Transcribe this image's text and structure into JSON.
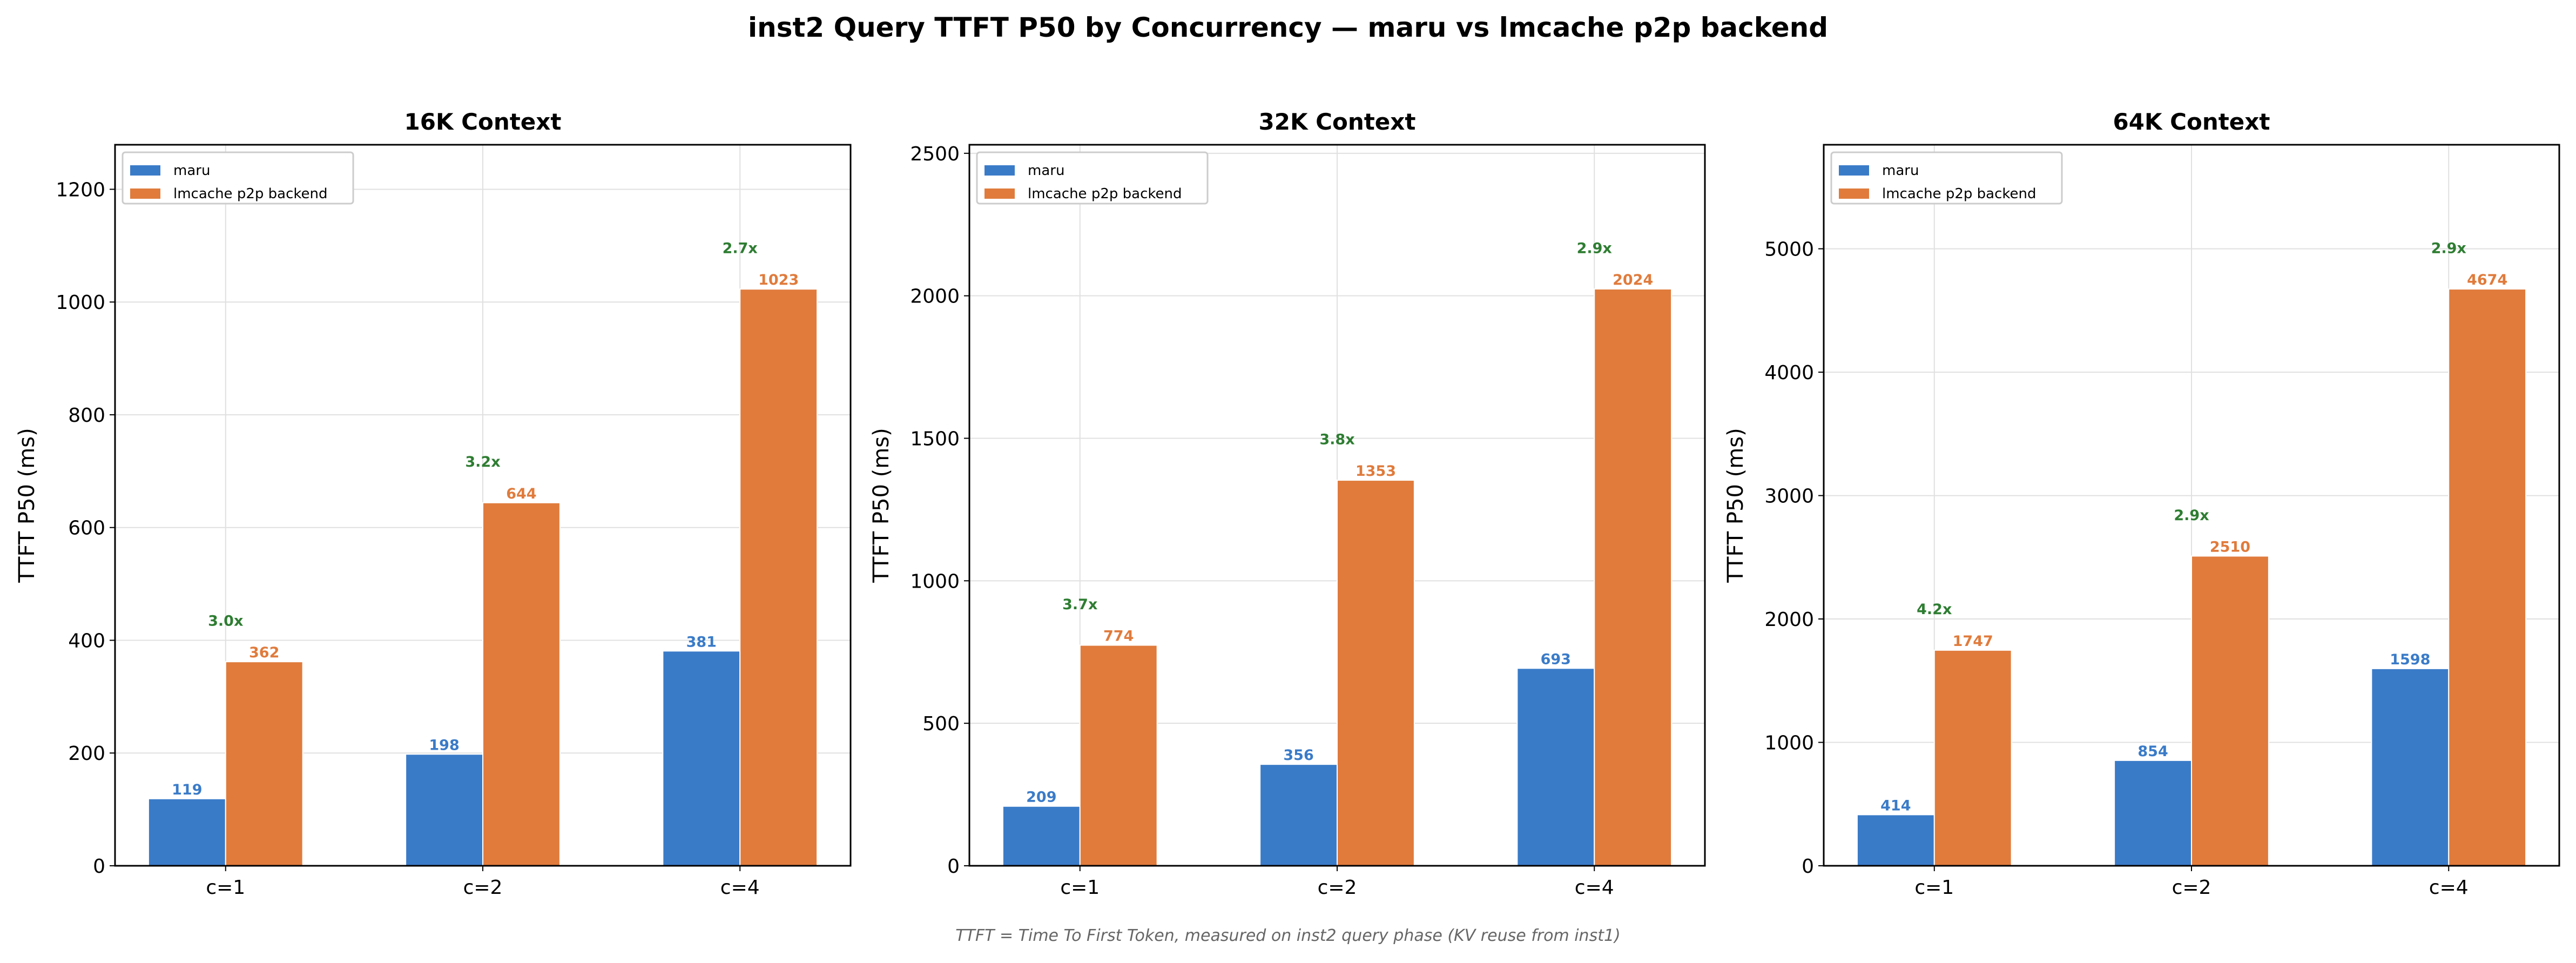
{
  "title": "inst2 Query TTFT P50 by Concurrency — maru vs lmcache p2p backend",
  "footer": "TTFT = Time To First Token, measured on inst2 query phase (KV reuse from inst1)",
  "colors": {
    "maru": "#3a7bc8",
    "lmcache": "#e07b3c",
    "ratio": "#2e7d32",
    "grid": "#e0e0e0"
  },
  "chart_data": [
    {
      "type": "bar",
      "title": "16K Context",
      "ylabel": "TTFT P50 (ms)",
      "categories": [
        "c=1",
        "c=2",
        "c=4"
      ],
      "ylim": [
        0,
        1279
      ],
      "yticks": [
        0,
        200,
        400,
        600,
        800,
        1000,
        1200
      ],
      "grid": true,
      "legend": "top-left",
      "series": [
        {
          "name": "maru",
          "values": [
            119,
            198,
            381
          ]
        },
        {
          "name": "lmcache p2p backend",
          "values": [
            362,
            644,
            1023
          ]
        }
      ],
      "ratios": [
        "3.0x",
        "3.2x",
        "2.7x"
      ]
    },
    {
      "type": "bar",
      "title": "32K Context",
      "ylabel": "TTFT P50 (ms)",
      "categories": [
        "c=1",
        "c=2",
        "c=4"
      ],
      "ylim": [
        0,
        2530
      ],
      "yticks": [
        0,
        500,
        1000,
        1500,
        2000,
        2500
      ],
      "grid": true,
      "legend": "top-left",
      "series": [
        {
          "name": "maru",
          "values": [
            209,
            356,
            693
          ]
        },
        {
          "name": "lmcache p2p backend",
          "values": [
            774,
            1353,
            2024
          ]
        }
      ],
      "ratios": [
        "3.7x",
        "3.8x",
        "2.9x"
      ]
    },
    {
      "type": "bar",
      "title": "64K Context",
      "ylabel": "TTFT P50 (ms)",
      "categories": [
        "c=1",
        "c=2",
        "c=4"
      ],
      "ylim": [
        0,
        5843
      ],
      "yticks": [
        0,
        1000,
        2000,
        3000,
        4000,
        5000
      ],
      "grid": true,
      "legend": "top-left",
      "series": [
        {
          "name": "maru",
          "values": [
            414,
            854,
            1598
          ]
        },
        {
          "name": "lmcache p2p backend",
          "values": [
            1747,
            2510,
            4674
          ]
        }
      ],
      "ratios": [
        "4.2x",
        "2.9x",
        "2.9x"
      ]
    }
  ]
}
